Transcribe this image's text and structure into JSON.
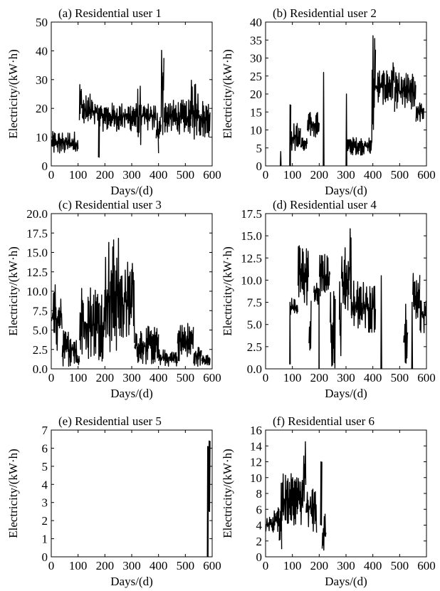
{
  "chart_data": [
    {
      "type": "line",
      "title": "(a) Residential user 1",
      "xlabel": "Days/(d)",
      "ylabel": "Electricity/(kW·h)",
      "xlim": [
        0,
        600
      ],
      "ylim": [
        0,
        50
      ],
      "xticks": [
        0,
        100,
        200,
        300,
        400,
        500,
        600
      ],
      "yticks": [
        0,
        10,
        20,
        30,
        40,
        50
      ],
      "ytick_labels": [
        "0",
        "10",
        "20",
        "30",
        "40",
        "50"
      ],
      "series": [
        {
          "segments": [
            {
              "x_range": [
                1,
                100
              ],
              "low": 4,
              "high": 12
            },
            {
              "x_range": [
                105,
                115
              ],
              "low": 14,
              "high": 30
            },
            {
              "x_range": [
                116,
                175
              ],
              "low": 13,
              "high": 25
            },
            {
              "x_range": [
                176,
                180
              ],
              "low": 3,
              "high": 20
            },
            {
              "x_range": [
                181,
                320
              ],
              "low": 12,
              "high": 22
            },
            {
              "x_range": [
                321,
                335
              ],
              "low": 7,
              "high": 28
            },
            {
              "x_range": [
                336,
                390
              ],
              "low": 12,
              "high": 22
            },
            {
              "x_range": [
                391,
                400
              ],
              "low": 3,
              "high": 20
            },
            {
              "x_range": [
                401,
                409
              ],
              "low": 9,
              "high": 20
            },
            {
              "x_range": [
                410,
                420
              ],
              "low": 10,
              "high": 48
            },
            {
              "x_range": [
                421,
                520
              ],
              "low": 11,
              "high": 23
            },
            {
              "x_range": [
                521,
                550
              ],
              "low": 9,
              "high": 30
            },
            {
              "x_range": [
                551,
                592
              ],
              "low": 10,
              "high": 23
            }
          ]
        }
      ]
    },
    {
      "type": "line",
      "title": "(b) Residential user 2",
      "xlabel": "Days/(d)",
      "ylabel": "Electricity/(kW·h)",
      "xlim": [
        0,
        600
      ],
      "ylim": [
        0,
        40
      ],
      "xticks": [
        0,
        100,
        200,
        300,
        400,
        500,
        600
      ],
      "yticks": [
        0,
        5,
        10,
        15,
        20,
        25,
        30,
        35,
        40
      ],
      "ytick_labels": [
        "0",
        "5",
        "10",
        "15",
        "20",
        "25",
        "30",
        "35",
        "40"
      ],
      "series": [
        {
          "segments": [
            {
              "x_range": [
                55,
                58
              ],
              "low": 0,
              "high": 4
            },
            {
              "x_range": [
                90,
                94
              ],
              "low": 0,
              "high": 17
            },
            {
              "x_range": [
                95,
                130
              ],
              "low": 4,
              "high": 12
            },
            {
              "x_range": [
                131,
                155
              ],
              "low": 4,
              "high": 8
            },
            {
              "x_range": [
                156,
                200
              ],
              "low": 8,
              "high": 15
            },
            {
              "x_range": [
                215,
                218
              ],
              "low": 0,
              "high": 26
            },
            {
              "x_range": [
                300,
                303
              ],
              "low": 0,
              "high": 20
            },
            {
              "x_range": [
                304,
                395
              ],
              "low": 3,
              "high": 8
            },
            {
              "x_range": [
                396,
                410
              ],
              "low": 6,
              "high": 39
            },
            {
              "x_range": [
                411,
                470
              ],
              "low": 17,
              "high": 27
            },
            {
              "x_range": [
                471,
                480
              ],
              "low": 18,
              "high": 31
            },
            {
              "x_range": [
                481,
                560
              ],
              "low": 15,
              "high": 26
            },
            {
              "x_range": [
                561,
                590
              ],
              "low": 12,
              "high": 18
            }
          ]
        }
      ]
    },
    {
      "type": "line",
      "title": "(c) Residential user 3",
      "xlabel": "Days/(d)",
      "ylabel": "Electricity/(kW·h)",
      "xlim": [
        0,
        600
      ],
      "ylim": [
        0,
        20
      ],
      "xticks": [
        0,
        100,
        200,
        300,
        400,
        500,
        600
      ],
      "yticks": [
        0,
        2.5,
        5,
        7.5,
        10,
        12.5,
        15,
        17.5,
        20
      ],
      "ytick_labels": [
        "0.0",
        "2.5",
        "5.0",
        "7.5",
        "10.0",
        "12.5",
        "15.0",
        "17.5",
        "20.0"
      ],
      "series": [
        {
          "segments": [
            {
              "x_range": [
                1,
                40
              ],
              "low": 2,
              "high": 11
            },
            {
              "x_range": [
                41,
                95
              ],
              "low": 0.3,
              "high": 5
            },
            {
              "x_range": [
                96,
                105
              ],
              "low": 0.3,
              "high": 2
            },
            {
              "x_range": [
                106,
                200
              ],
              "low": 1,
              "high": 11
            },
            {
              "x_range": [
                201,
                255
              ],
              "low": 2,
              "high": 17
            },
            {
              "x_range": [
                256,
                300
              ],
              "low": 3,
              "high": 14
            },
            {
              "x_range": [
                301,
                310
              ],
              "low": 3,
              "high": 18.5
            },
            {
              "x_range": [
                311,
                400
              ],
              "low": 0.5,
              "high": 5.5
            },
            {
              "x_range": [
                401,
                470
              ],
              "low": 0.3,
              "high": 2.5
            },
            {
              "x_range": [
                471,
                530
              ],
              "low": 1,
              "high": 6
            },
            {
              "x_range": [
                531,
                560
              ],
              "low": 0.3,
              "high": 3
            },
            {
              "x_range": [
                561,
                592
              ],
              "low": 0.5,
              "high": 1.8
            }
          ]
        }
      ]
    },
    {
      "type": "line",
      "title": "(d) Residential user 4",
      "xlabel": "Days/(d)",
      "ylabel": "Electricity/(kW·h)",
      "xlim": [
        0,
        600
      ],
      "ylim": [
        0,
        17.5
      ],
      "xticks": [
        0,
        100,
        200,
        300,
        400,
        500,
        600
      ],
      "yticks": [
        0,
        2.5,
        5,
        7.5,
        10,
        12.5,
        15,
        17.5
      ],
      "ytick_labels": [
        "0.0",
        "2.5",
        "5.0",
        "7.5",
        "10.0",
        "12.5",
        "15.0",
        "17.5"
      ],
      "series": [
        {
          "segments": [
            {
              "x_range": [
                90,
                92
              ],
              "low": 0.5,
              "high": 7.5
            },
            {
              "x_range": [
                93,
                120
              ],
              "low": 6,
              "high": 8
            },
            {
              "x_range": [
                121,
                160
              ],
              "low": 7,
              "high": 14
            },
            {
              "x_range": [
                162,
                170
              ],
              "low": 0,
              "high": 9.5
            },
            {
              "x_range": [
                180,
                198
              ],
              "low": 7,
              "high": 10
            },
            {
              "x_range": [
                199,
                200
              ],
              "low": 0,
              "high": 9
            },
            {
              "x_range": [
                201,
                240
              ],
              "low": 8,
              "high": 13
            },
            {
              "x_range": [
                241,
                260
              ],
              "low": 0,
              "high": 10
            },
            {
              "x_range": [
                275,
                282
              ],
              "low": 0,
              "high": 11
            },
            {
              "x_range": [
                283,
                310
              ],
              "low": 6,
              "high": 14
            },
            {
              "x_range": [
                311,
                320
              ],
              "low": 6,
              "high": 17
            },
            {
              "x_range": [
                321,
                410
              ],
              "low": 4,
              "high": 10
            },
            {
              "x_range": [
                430,
                433
              ],
              "low": 0,
              "high": 10.5
            },
            {
              "x_range": [
                515,
                530
              ],
              "low": 0.5,
              "high": 7.5
            },
            {
              "x_range": [
                545,
                548
              ],
              "low": 0,
              "high": 7.5
            },
            {
              "x_range": [
                549,
                575
              ],
              "low": 5,
              "high": 12
            },
            {
              "x_range": [
                576,
                600
              ],
              "low": 4,
              "high": 8
            }
          ]
        }
      ]
    },
    {
      "type": "line",
      "title": "(e) Residential user 5",
      "xlabel": "Days/(d)",
      "ylabel": "Electricity/(kW·h)",
      "xlim": [
        0,
        600
      ],
      "ylim": [
        0,
        7
      ],
      "xticks": [
        0,
        100,
        200,
        300,
        400,
        500,
        600
      ],
      "yticks": [
        0,
        1,
        2,
        3,
        4,
        5,
        6,
        7
      ],
      "ytick_labels": [
        "0",
        "1",
        "2",
        "3",
        "4",
        "5",
        "6",
        "7"
      ],
      "series": [
        {
          "segments": [
            {
              "x_range": [
                582,
                586
              ],
              "low": 0,
              "high": 6.1
            },
            {
              "x_range": [
                587,
                592
              ],
              "low": 2.5,
              "high": 6.4
            }
          ]
        }
      ]
    },
    {
      "type": "line",
      "title": "(f) Residential user 6",
      "xlabel": "Days/(d)",
      "ylabel": "Electricity/(kW·h)",
      "xlim": [
        0,
        600
      ],
      "ylim": [
        0,
        16
      ],
      "xticks": [
        0,
        100,
        200,
        300,
        400,
        500,
        600
      ],
      "yticks": [
        0,
        2,
        4,
        6,
        8,
        10,
        12,
        14,
        16
      ],
      "ytick_labels": [
        "0",
        "2",
        "4",
        "6",
        "8",
        "10",
        "12",
        "14",
        "16"
      ],
      "series": [
        {
          "segments": [
            {
              "x_range": [
                1,
                30
              ],
              "low": 3,
              "high": 5
            },
            {
              "x_range": [
                31,
                50
              ],
              "low": 3,
              "high": 7
            },
            {
              "x_range": [
                51,
                60
              ],
              "low": 0,
              "high": 9.5
            },
            {
              "x_range": [
                61,
                140
              ],
              "low": 4,
              "high": 10.5
            },
            {
              "x_range": [
                141,
                150
              ],
              "low": 4,
              "high": 16
            },
            {
              "x_range": [
                151,
                190
              ],
              "low": 3,
              "high": 9
            },
            {
              "x_range": [
                205,
                210
              ],
              "low": 4,
              "high": 12
            },
            {
              "x_range": [
                211,
                225
              ],
              "low": 0,
              "high": 6
            }
          ]
        }
      ]
    }
  ]
}
